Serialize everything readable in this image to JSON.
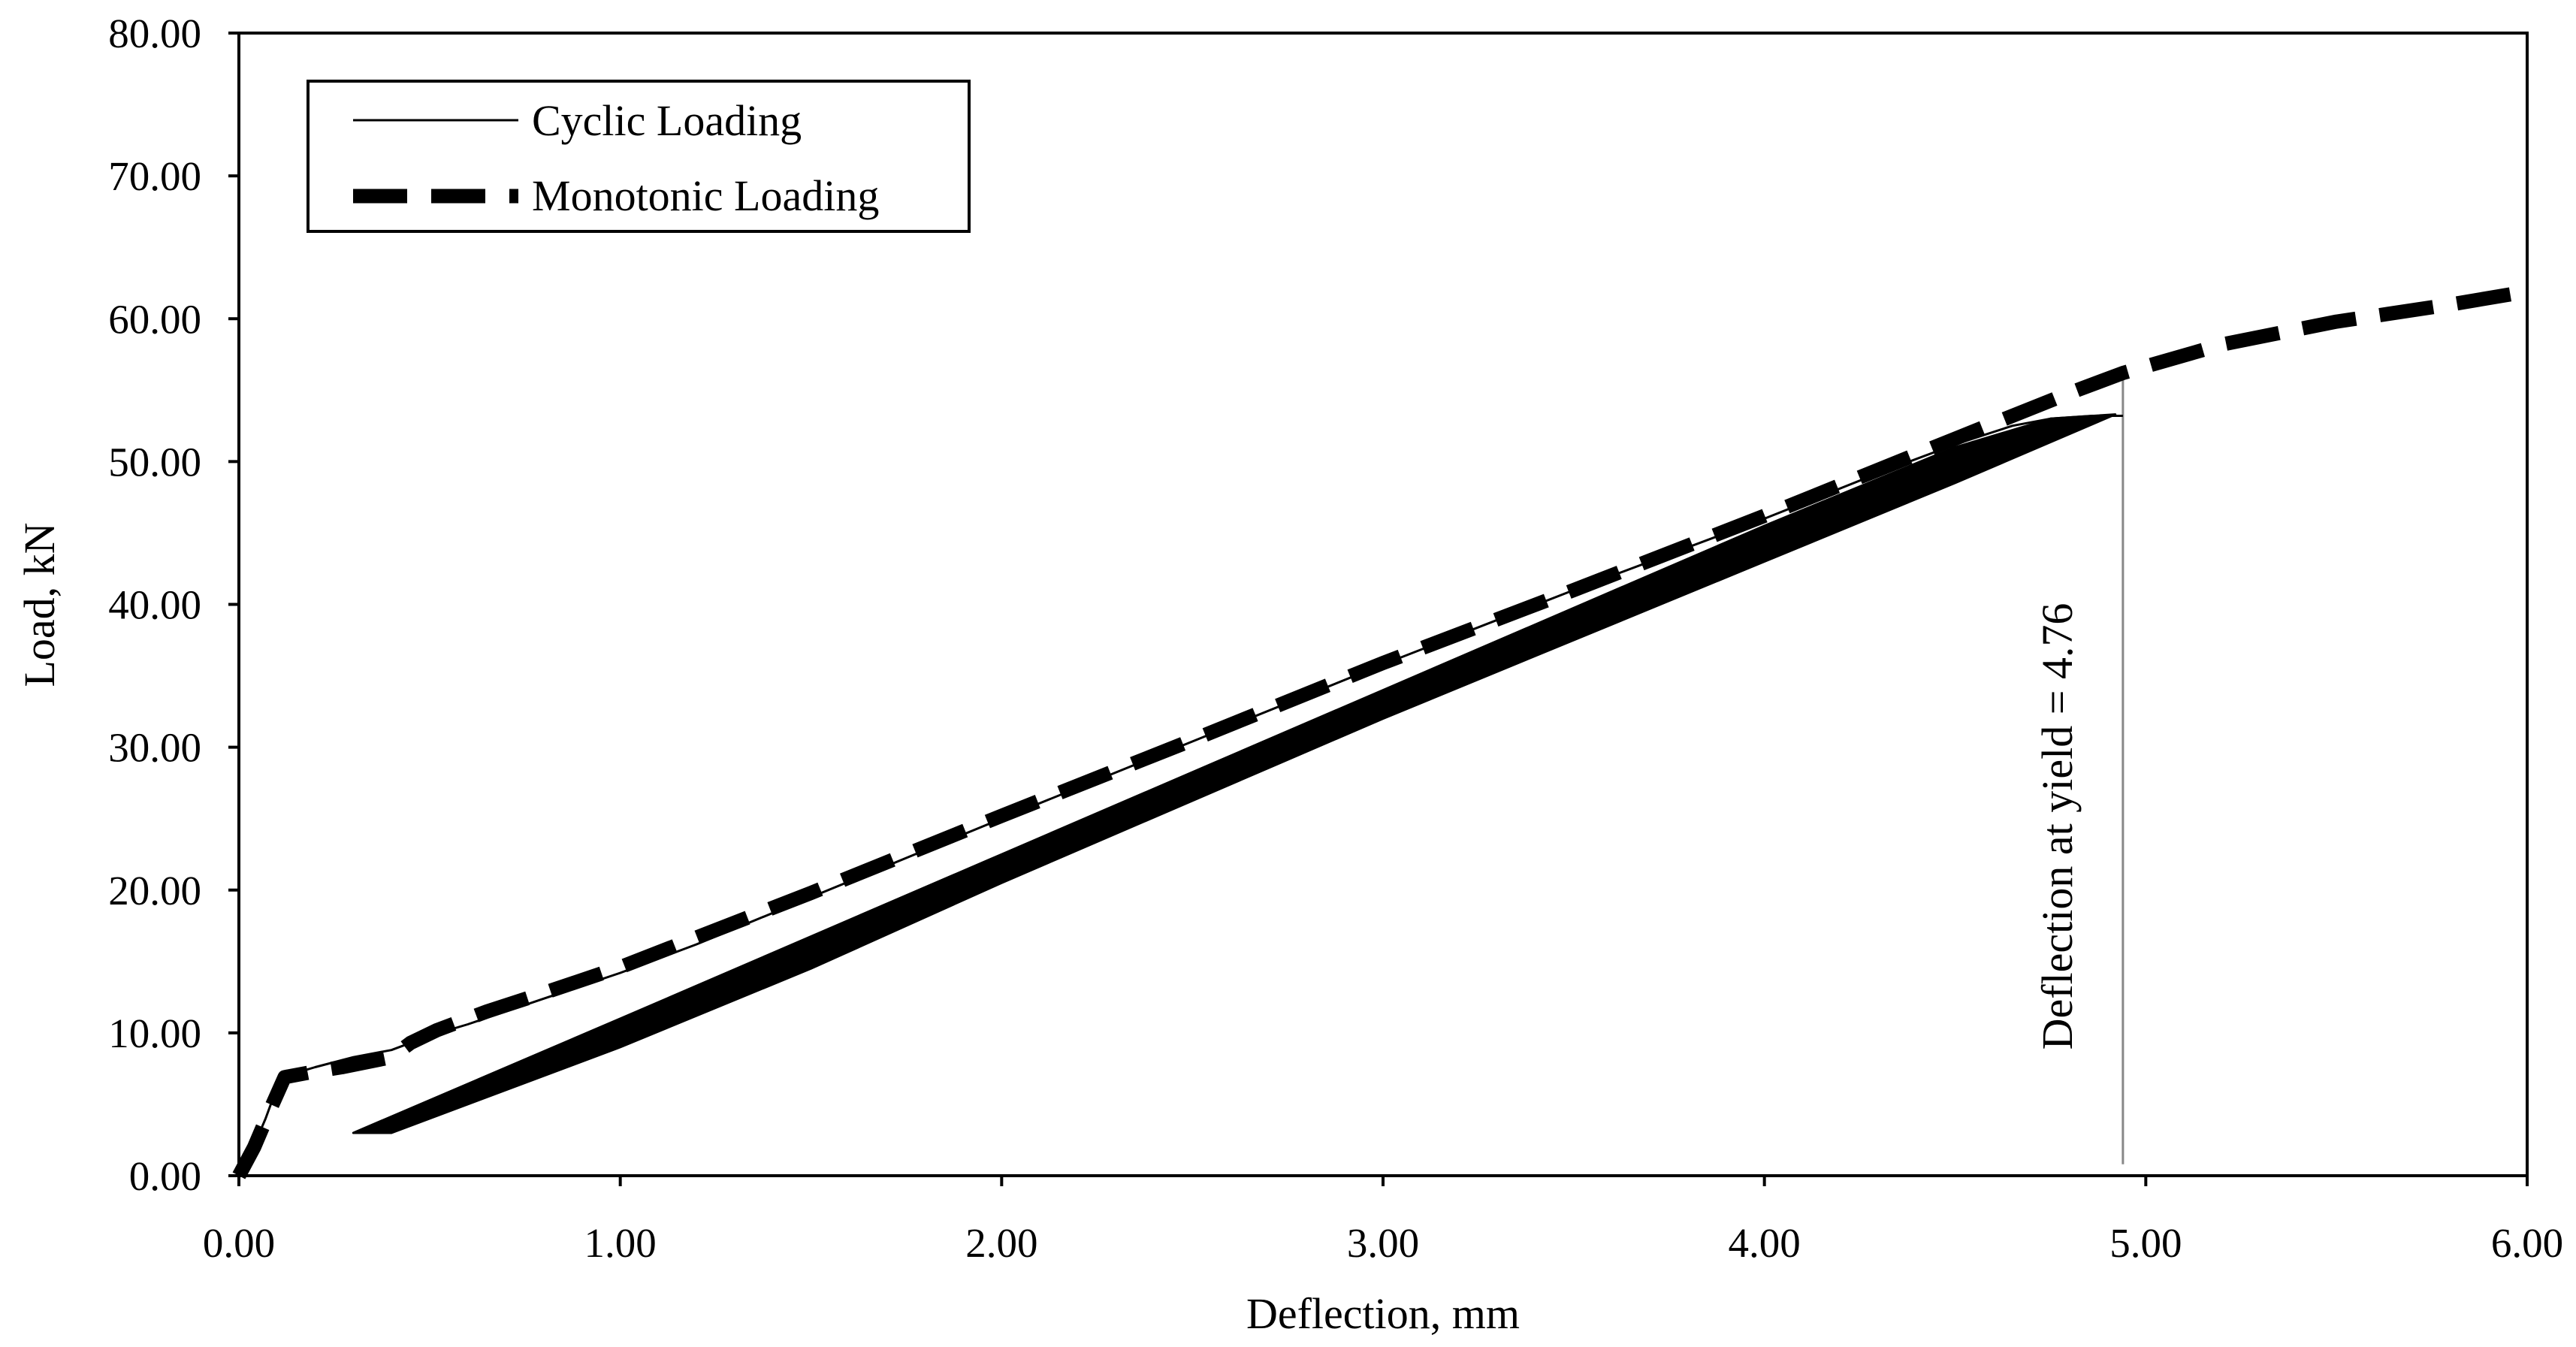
{
  "chart_data": {
    "type": "line",
    "title": "",
    "xlabel": "Deflection, mm",
    "ylabel": "Load, kN",
    "xlim": [
      0,
      6
    ],
    "ylim": [
      0,
      80
    ],
    "x_ticks": [
      "0.00",
      "1.00",
      "2.00",
      "3.00",
      "4.00",
      "5.00",
      "6.00"
    ],
    "y_ticks": [
      "0.00",
      "10.00",
      "20.00",
      "30.00",
      "40.00",
      "50.00",
      "60.00",
      "70.00",
      "80.00"
    ],
    "grid": false,
    "legend": {
      "position": "top-left",
      "entries": [
        {
          "label": "Cyclic Loading",
          "style": "thin-solid"
        },
        {
          "label": "Monotonic Loading",
          "style": "thick-dashed"
        }
      ]
    },
    "series": [
      {
        "name": "Cyclic Loading",
        "style": "thin-solid",
        "color": "#000000",
        "x": [
          0.0,
          0.03,
          0.07,
          0.1,
          0.12,
          0.15,
          0.2,
          0.3,
          0.4,
          0.5,
          0.6,
          0.8,
          1.0,
          1.2,
          1.5,
          2.0,
          2.5,
          3.0,
          3.5,
          4.0,
          4.3,
          4.5,
          4.65,
          4.75,
          4.86,
          4.94
        ],
        "y": [
          0.0,
          1.5,
          4.0,
          6.2,
          6.8,
          7.2,
          7.6,
          8.3,
          8.8,
          9.8,
          10.6,
          12.4,
          14.2,
          16.2,
          19.5,
          25.0,
          30.4,
          35.8,
          41.0,
          46.0,
          49.2,
          51.2,
          52.5,
          53.0,
          53.2,
          53.2
        ]
      },
      {
        "name": "Monotonic Loading",
        "style": "thick-dashed",
        "color": "#000000",
        "x": [
          0.0,
          0.04,
          0.08,
          0.12,
          0.2,
          0.27,
          0.4,
          0.45,
          0.52,
          0.65,
          0.8,
          1.0,
          1.5,
          2.0,
          2.5,
          3.0,
          3.5,
          4.0,
          4.5,
          4.8,
          4.94,
          5.2,
          5.5,
          5.8,
          6.0
        ],
        "y": [
          0.0,
          2.0,
          4.5,
          6.9,
          7.3,
          7.6,
          8.3,
          9.3,
          10.2,
          11.5,
          12.8,
          14.6,
          19.8,
          25.2,
          30.5,
          35.9,
          41.0,
          46.2,
          51.6,
          54.8,
          56.2,
          58.2,
          59.8,
          61.0,
          61.9
        ]
      }
    ],
    "cyclic_loops_band": {
      "loading_branch": {
        "x": [
          0.3,
          1.0,
          2.0,
          3.0,
          4.0,
          4.5,
          4.75,
          4.92
        ],
        "y": [
          3.0,
          11.0,
          22.5,
          34.0,
          45.5,
          51.0,
          53.0,
          53.3
        ]
      },
      "unloading_branch": {
        "x": [
          0.4,
          1.0,
          1.5,
          2.0,
          3.0,
          4.0,
          4.5,
          4.92
        ],
        "y": [
          3.0,
          9.0,
          14.5,
          20.5,
          32.0,
          43.0,
          48.5,
          53.3
        ]
      }
    },
    "annotations": [
      {
        "text": "Deflection at yield = 4.76",
        "x": 4.94,
        "y_from": 0.8,
        "y_to": 56.0
      }
    ]
  }
}
